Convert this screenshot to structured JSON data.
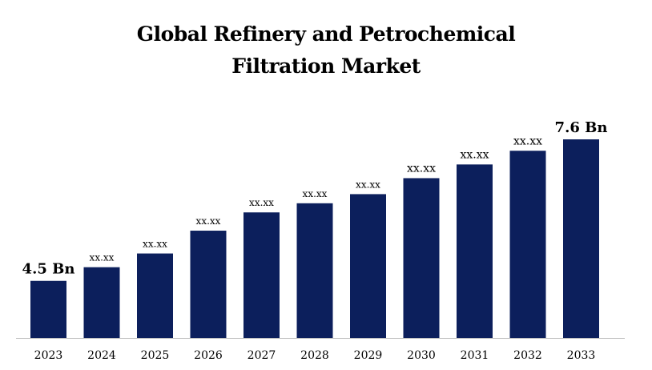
{
  "chart_data": {
    "type": "bar",
    "title_lines": [
      "Global Refinery and Petrochemical",
      "Filtration Market"
    ],
    "categories": [
      "2023",
      "2024",
      "2025",
      "2026",
      "2027",
      "2028",
      "2029",
      "2030",
      "2031",
      "2032",
      "2033"
    ],
    "values": [
      4.5,
      4.8,
      5.1,
      5.6,
      6.0,
      6.2,
      6.4,
      6.75,
      7.05,
      7.35,
      7.6
    ],
    "data_labels": [
      "4.5 Bn",
      "xx.xx",
      "xx.xx",
      "xx.xx",
      "xx.xx",
      "xx.xx",
      "xx.xx",
      "xx.xx",
      "xx.xx",
      "xx.xx",
      "7.6 Bn"
    ],
    "xlabel": "",
    "ylabel": "",
    "ylim": [
      3.25,
      7.6
    ],
    "bar_color": "#0c1f5c",
    "axis_color": "#bfbfbf",
    "grid": false,
    "legend": "none"
  }
}
